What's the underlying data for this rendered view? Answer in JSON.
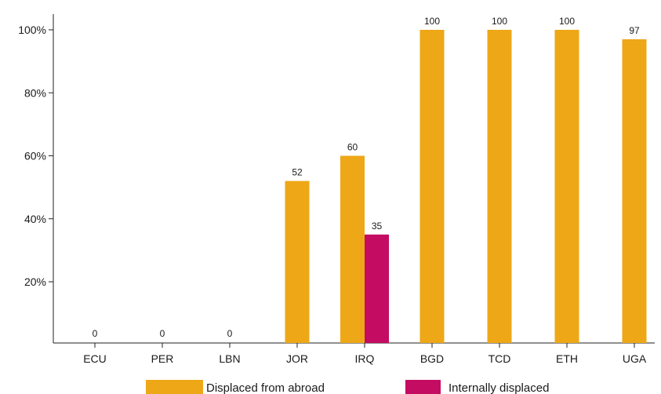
{
  "chart_data": {
    "type": "bar",
    "categories": [
      "ECU",
      "PER",
      "LBN",
      "JOR",
      "IRQ",
      "BGD",
      "TCD",
      "ETH",
      "UGA"
    ],
    "series": [
      {
        "name": "Displaced from abroad",
        "color": "#eea717",
        "values": [
          0,
          0,
          0,
          52,
          60,
          100,
          100,
          100,
          97
        ]
      },
      {
        "name": "Internally displaced",
        "color": "#c40c63",
        "values": [
          null,
          null,
          null,
          null,
          35,
          null,
          null,
          null,
          null
        ]
      }
    ],
    "data_labels": [
      "0",
      "0",
      "0",
      "52",
      "60",
      "100",
      "100",
      "100",
      "97"
    ],
    "internal_labels": [
      null,
      null,
      null,
      null,
      "35",
      null,
      null,
      null,
      null
    ],
    "y_ticks": [
      {
        "value": 20,
        "label": "20%"
      },
      {
        "value": 40,
        "label": "40%"
      },
      {
        "value": 60,
        "label": "60%"
      },
      {
        "value": 80,
        "label": "80%"
      },
      {
        "value": 100,
        "label": "100%"
      }
    ],
    "ylim": [
      0,
      100
    ],
    "legend_position": "bottom",
    "grid": false,
    "title": "",
    "xlabel": "",
    "ylabel": ""
  }
}
